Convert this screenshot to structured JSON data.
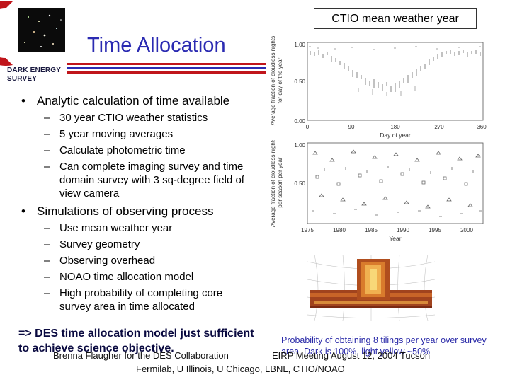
{
  "logo": {
    "text_line1": "DARK ENERGY",
    "text_line2": "SURVEY"
  },
  "title": "Time Allocation",
  "caption_box": "CTIO mean weather year",
  "bullets": [
    {
      "text": "Analytic calculation of time available",
      "subitems": [
        "30 year CTIO weather statistics",
        "5 year moving averages",
        "Calculate photometric time",
        "Can complete imaging survey and time domain survey with 3 sq-degree field of view camera"
      ]
    },
    {
      "text": "Simulations of observing process",
      "subitems": [
        "Use mean weather year",
        "Survey geometry",
        "Observing overhead",
        "NOAO time allocation model",
        "High probability of completing core survey area in time allocated"
      ]
    }
  ],
  "bullet_symbol": "•",
  "dash_symbol": "–",
  "plot_top": {
    "ylabel_line1": "Average fraction of cloudless nights",
    "ylabel_line2": "for day of the year",
    "xlabel": "Day of year",
    "yticks": [
      "1.00",
      "0.50",
      "0.00"
    ],
    "xticks": [
      "0",
      "90",
      "180",
      "270",
      "360"
    ]
  },
  "plot_bottom": {
    "ylabel_line1": "Average fraction of cloudless nights",
    "ylabel_line2": "per season per year",
    "xlabel": "Year",
    "yticks": [
      "1.00",
      "0.50"
    ],
    "xticks": [
      "1975",
      "1980",
      "1985",
      "1990",
      "1995",
      "2000"
    ]
  },
  "bottom_statement": "=> DES time allocation model just sufficient to achieve science objective.",
  "probability_caption": "Probability of obtaining 8 tilings per year over survey area. Dark is 100%, light yellow ~50%",
  "footer_line1": "Brenna Flaugher for the DES Collaboration",
  "footer_event": "EIRP Meeting August 12, 2004 Tucson",
  "footer_line2": "Fermilab, U Illinois, U Chicago, LBNL, CTIO/NOAO",
  "colors": {
    "title": "#2b2bb2",
    "rule_red": "#c0151b",
    "rule_blue": "#2b2bb2",
    "caption_text": "#2a2aa8"
  }
}
